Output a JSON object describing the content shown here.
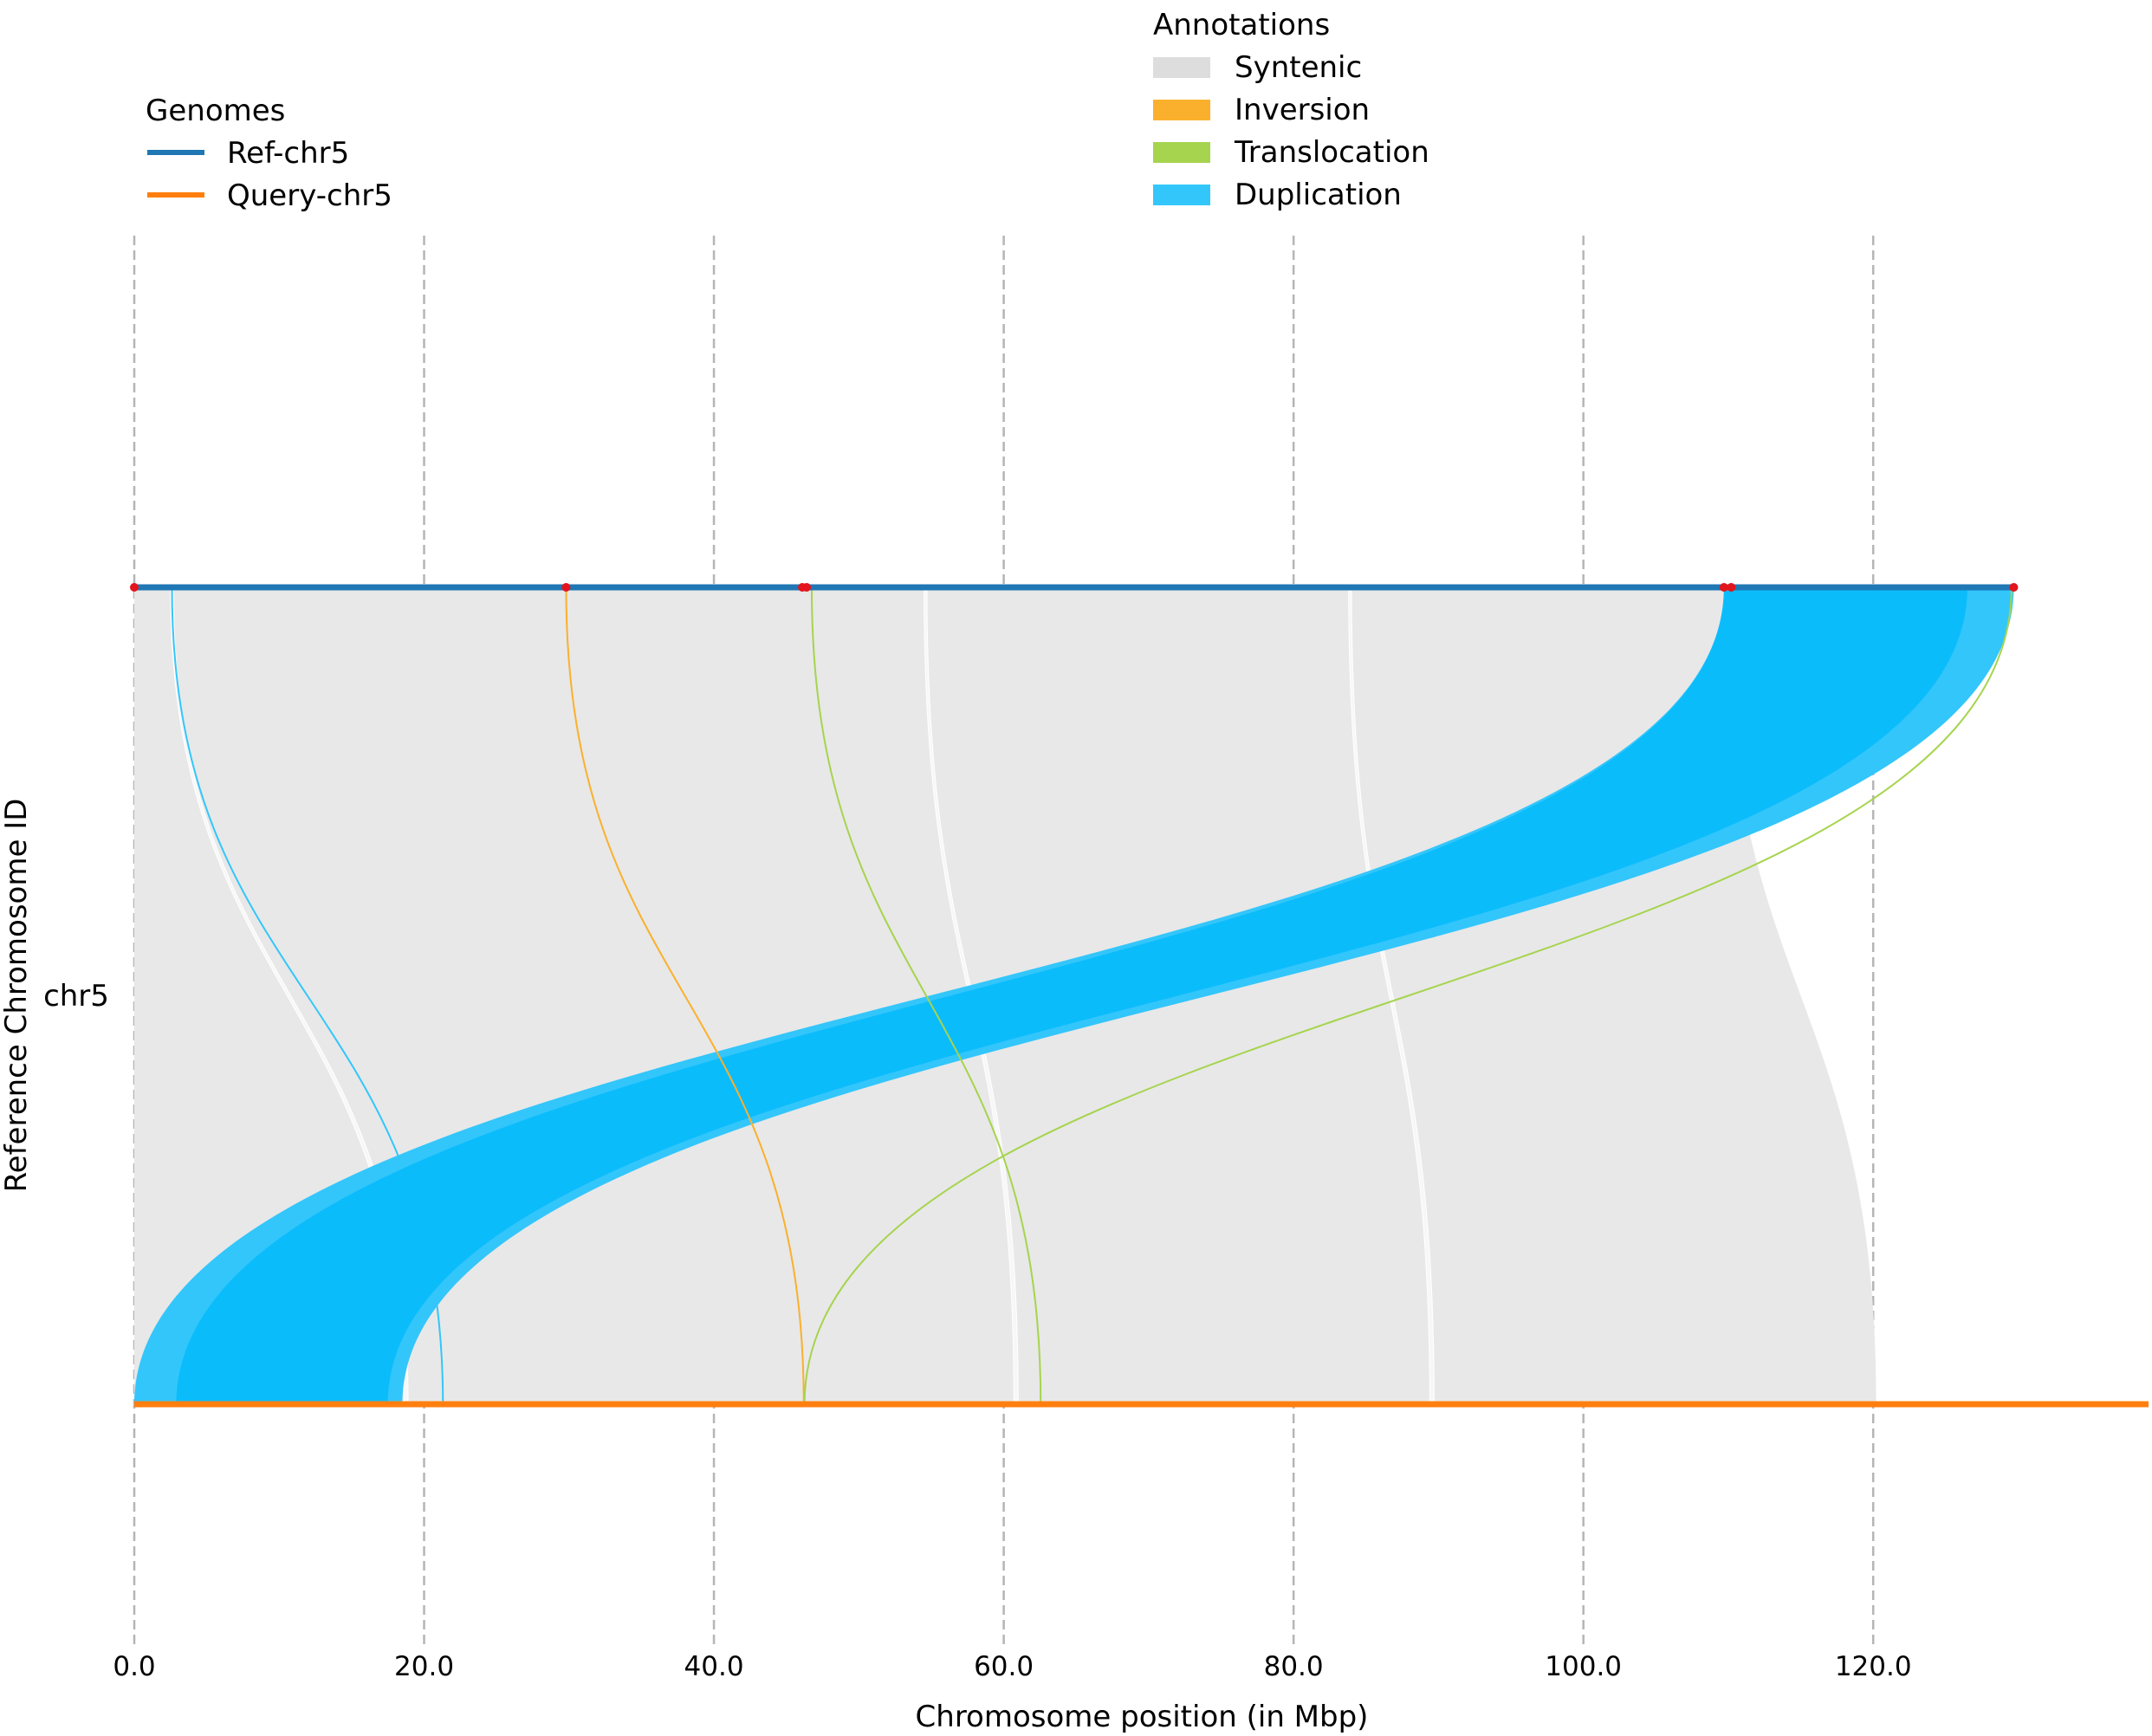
{
  "chart_data": {
    "type": "synteny",
    "xlabel": "Chromosome position (in Mbp)",
    "ylabel": "Reference Chromosome ID",
    "chromosome_label": "chr5",
    "xlim": [
      0,
      139
    ],
    "xticks": [
      0,
      20,
      40,
      60,
      80,
      100,
      120
    ],
    "xtick_labels": [
      "0.0",
      "20.0",
      "40.0",
      "60.0",
      "80.0",
      "100.0",
      "120.0"
    ],
    "grid": "vertical dashed",
    "genomes_legend": {
      "title": "Genomes",
      "entries": [
        {
          "name": "Ref-chr5",
          "color": "#1f77b4",
          "length_mbp": 129.7
        },
        {
          "name": "Query-chr5",
          "color": "#ff7f0e",
          "length_mbp": 139.0
        }
      ]
    },
    "annotations_legend": {
      "title": "Annotations",
      "entries": [
        {
          "name": "Syntenic",
          "color": "#dddddd"
        },
        {
          "name": "Inversion",
          "color": "#fbb02d"
        },
        {
          "name": "Translocation",
          "color": "#a6d44e"
        },
        {
          "name": "Duplication",
          "color": "#33c6fb"
        }
      ]
    },
    "alignments": [
      {
        "type": "syntenic",
        "ref": [
          0.0,
          109.8
        ],
        "query": [
          0.0,
          120.2
        ]
      },
      {
        "type": "syntenic",
        "ref": [
          2.5,
          2.7
        ],
        "query": [
          18.6,
          18.9
        ]
      },
      {
        "type": "syntenic",
        "ref": [
          54.5,
          54.7
        ],
        "query": [
          60.7,
          61.0
        ]
      },
      {
        "type": "syntenic",
        "ref": [
          83.8,
          84.0
        ],
        "query": [
          89.4,
          89.7
        ]
      },
      {
        "type": "duplication",
        "ref": [
          2.5,
          2.7
        ],
        "query": [
          21.2,
          21.4
        ]
      },
      {
        "type": "duplication",
        "ref": [
          109.7,
          129.7
        ],
        "query": [
          0.0,
          18.5
        ]
      },
      {
        "type": "duplication",
        "ref": [
          109.7,
          126.5
        ],
        "query": [
          2.9,
          17.5
        ]
      },
      {
        "type": "inversion",
        "ref": [
          29.7,
          29.9
        ],
        "query": [
          46.1,
          46.3
        ]
      },
      {
        "type": "translocation",
        "ref": [
          46.6,
          46.9
        ],
        "query": [
          62.4,
          62.7
        ]
      },
      {
        "type": "translocation",
        "ref": [
          129.4,
          129.7
        ],
        "query": [
          46.1,
          46.4
        ]
      }
    ],
    "breakpoints_ref": [
      0.0,
      29.8,
      46.1,
      46.4,
      109.7,
      110.2,
      129.7
    ]
  }
}
